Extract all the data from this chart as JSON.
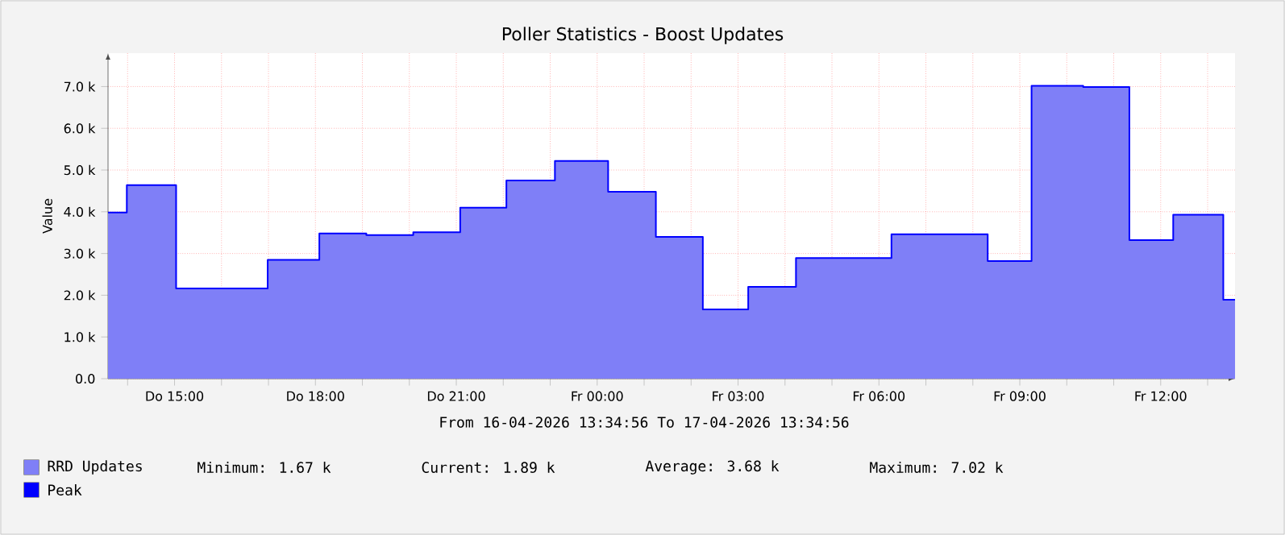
{
  "chart_data": {
    "type": "area",
    "title": "Poller Statistics - Boost Updates",
    "ylabel": "Value",
    "x": [
      "2026-04-16T13:35",
      "2026-04-16T13:59",
      "2026-04-16T15:02",
      "2026-04-16T16:59",
      "2026-04-16T18:05",
      "2026-04-16T19:05",
      "2026-04-16T20:05",
      "2026-04-16T21:05",
      "2026-04-16T22:04",
      "2026-04-16T23:06",
      "2026-04-17T00:14",
      "2026-04-17T01:15",
      "2026-04-17T02:15",
      "2026-04-17T03:13",
      "2026-04-17T04:14",
      "2026-04-17T06:16",
      "2026-04-17T08:19",
      "2026-04-17T09:15",
      "2026-04-17T10:21",
      "2026-04-17T11:20",
      "2026-04-17T12:16",
      "2026-04-17T13:20",
      "2026-04-17T13:35"
    ],
    "series": [
      {
        "name": "RRD Updates",
        "color": "#7f7ff7",
        "values": [
          3980,
          4640,
          2160,
          2850,
          3480,
          3440,
          3510,
          4100,
          4750,
          5220,
          4480,
          3400,
          1660,
          2200,
          2890,
          3460,
          2820,
          7020,
          6990,
          3320,
          3930,
          1890,
          1890
        ]
      },
      {
        "name": "Peak",
        "type": "step",
        "color": "#0000ff",
        "values": [
          3980,
          4640,
          2160,
          2850,
          3480,
          3440,
          3510,
          4100,
          4750,
          5220,
          4480,
          3400,
          1660,
          2200,
          2890,
          3460,
          2820,
          7020,
          6990,
          3320,
          3930,
          1890,
          1890
        ]
      }
    ],
    "xlim": [
      "2026-04-16T13:35",
      "2026-04-17T13:35"
    ],
    "xticks": [
      {
        "value": "2026-04-16T14:00",
        "label": null
      },
      {
        "value": "2026-04-16T15:00",
        "label": "Do 15:00"
      },
      {
        "value": "2026-04-16T16:00",
        "label": null
      },
      {
        "value": "2026-04-16T17:00",
        "label": null
      },
      {
        "value": "2026-04-16T18:00",
        "label": "Do 18:00"
      },
      {
        "value": "2026-04-16T19:00",
        "label": null
      },
      {
        "value": "2026-04-16T20:00",
        "label": null
      },
      {
        "value": "2026-04-16T21:00",
        "label": "Do 21:00"
      },
      {
        "value": "2026-04-16T22:00",
        "label": null
      },
      {
        "value": "2026-04-16T23:00",
        "label": null
      },
      {
        "value": "2026-04-17T00:00",
        "label": "Fr 00:00"
      },
      {
        "value": "2026-04-17T01:00",
        "label": null
      },
      {
        "value": "2026-04-17T02:00",
        "label": null
      },
      {
        "value": "2026-04-17T03:00",
        "label": "Fr 03:00"
      },
      {
        "value": "2026-04-17T04:00",
        "label": null
      },
      {
        "value": "2026-04-17T05:00",
        "label": null
      },
      {
        "value": "2026-04-17T06:00",
        "label": "Fr 06:00"
      },
      {
        "value": "2026-04-17T07:00",
        "label": null
      },
      {
        "value": "2026-04-17T08:00",
        "label": null
      },
      {
        "value": "2026-04-17T09:00",
        "label": "Fr 09:00"
      },
      {
        "value": "2026-04-17T10:00",
        "label": null
      },
      {
        "value": "2026-04-17T11:00",
        "label": null
      },
      {
        "value": "2026-04-17T12:00",
        "label": "Fr 12:00"
      },
      {
        "value": "2026-04-17T13:00",
        "label": null
      }
    ],
    "ylim": [
      0,
      7800
    ],
    "yticks": [
      {
        "value": 0,
        "label": "0.0"
      },
      {
        "value": 1000,
        "label": "1.0 k"
      },
      {
        "value": 2000,
        "label": "2.0 k"
      },
      {
        "value": 3000,
        "label": "3.0 k"
      },
      {
        "value": 4000,
        "label": "4.0 k"
      },
      {
        "value": 5000,
        "label": "5.0 k"
      },
      {
        "value": 6000,
        "label": "6.0 k"
      },
      {
        "value": 7000,
        "label": "7.0 k"
      }
    ],
    "grid": true,
    "legend": "bottom",
    "annotations": [
      "From 16-04-2026 13:34:56 To 17-04-2026 13:34:56",
      "Minimum: 1.67 k",
      "Current: 1.89 k",
      "Average: 3.68 k",
      "Maximum: 7.02 k"
    ]
  }
}
